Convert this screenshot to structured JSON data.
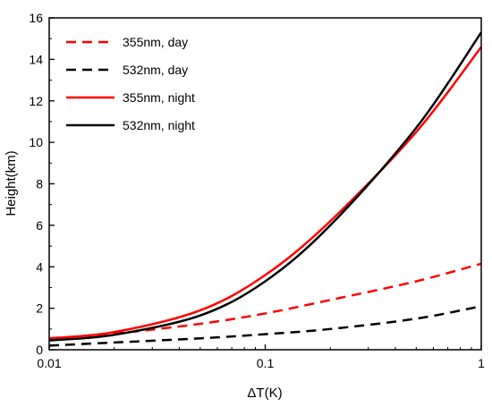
{
  "chart_data": {
    "type": "line",
    "xlabel": "ΔT(K)",
    "ylabel": "Height(km)",
    "xscale": "log",
    "xlim": [
      0.01,
      1
    ],
    "ylim": [
      0,
      16
    ],
    "xticks": [
      0.01,
      0.1,
      1
    ],
    "xtick_labels": [
      "0.01",
      "0.1",
      "1"
    ],
    "yticks": [
      0,
      2,
      4,
      6,
      8,
      10,
      12,
      14,
      16
    ],
    "ytick_labels": [
      "0",
      "2",
      "4",
      "6",
      "8",
      "10",
      "12",
      "14",
      "16"
    ],
    "grid": false,
    "legend_position": "top-left",
    "x": [
      0.01,
      0.02,
      0.05,
      0.1,
      0.2,
      0.5,
      1
    ],
    "series": [
      {
        "name": "355nm, day",
        "color": "#ff0000",
        "dash": "dashed",
        "values": [
          0.55,
          0.78,
          1.25,
          1.75,
          2.4,
          3.3,
          4.15
        ]
      },
      {
        "name": "532nm, day",
        "color": "#000000",
        "dash": "dashed",
        "values": [
          0.2,
          0.35,
          0.55,
          0.75,
          1.0,
          1.5,
          2.1
        ]
      },
      {
        "name": "355nm, night",
        "color": "#ff0000",
        "dash": "solid",
        "values": [
          0.55,
          0.85,
          1.9,
          3.6,
          6.2,
          10.5,
          14.6
        ]
      },
      {
        "name": "532nm, night",
        "color": "#000000",
        "dash": "solid",
        "values": [
          0.45,
          0.72,
          1.65,
          3.3,
          6.0,
          10.7,
          15.3
        ]
      }
    ]
  }
}
